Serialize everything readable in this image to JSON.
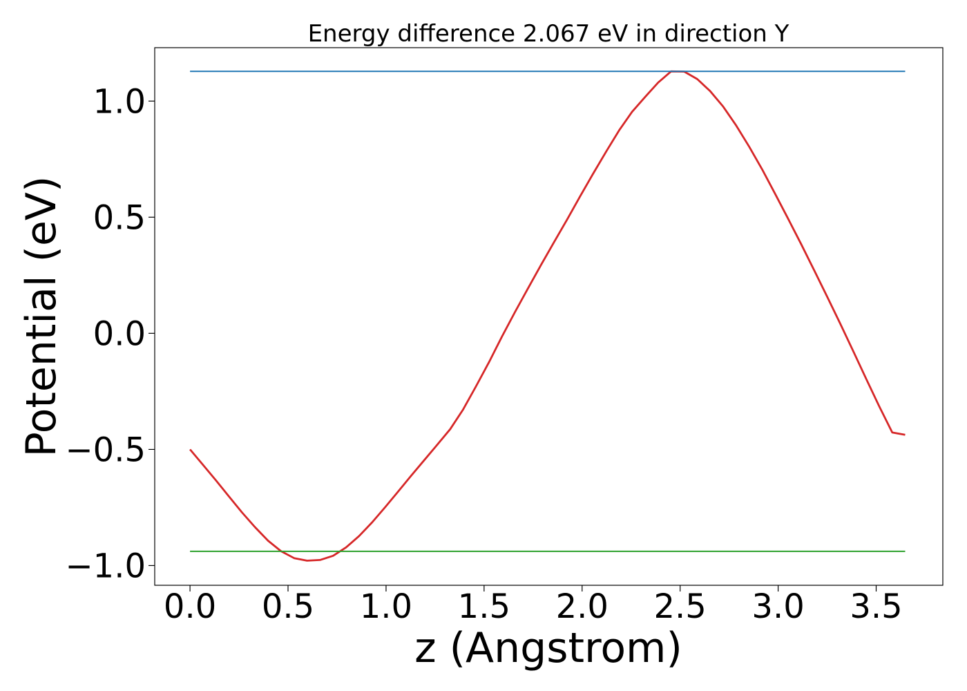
{
  "chart_data": {
    "type": "line",
    "title": "Energy difference 2.067 eV in direction Y",
    "xlabel": "z (Angstrom)",
    "ylabel": "Potential (eV)",
    "xlim": [
      -0.18,
      3.84
    ],
    "ylim": [
      -1.085,
      1.23
    ],
    "xticks": [
      0.0,
      0.5,
      1.0,
      1.5,
      2.0,
      2.5,
      3.0,
      3.5
    ],
    "xtick_labels": [
      "0.0",
      "0.5",
      "1.0",
      "1.5",
      "2.0",
      "2.5",
      "3.0",
      "3.5"
    ],
    "yticks": [
      -1.0,
      -0.5,
      0.0,
      0.5,
      1.0
    ],
    "ytick_labels": [
      "−1.0",
      "−0.5",
      "0.0",
      "0.5",
      "1.0"
    ],
    "grid": false,
    "legend": "none",
    "series": [
      {
        "color": "#d62728",
        "x": [
          0.0,
          0.066,
          0.133,
          0.199,
          0.265,
          0.332,
          0.398,
          0.464,
          0.531,
          0.597,
          0.663,
          0.73,
          0.796,
          0.862,
          0.929,
          0.995,
          1.061,
          1.128,
          1.194,
          1.26,
          1.327,
          1.393,
          1.459,
          1.526,
          1.592,
          1.658,
          1.725,
          1.791,
          1.857,
          1.924,
          1.99,
          2.056,
          2.123,
          2.189,
          2.255,
          2.322,
          2.388,
          2.454,
          2.521,
          2.587,
          2.653,
          2.72,
          2.786,
          2.852,
          2.919,
          2.985,
          3.051,
          3.118,
          3.184,
          3.25,
          3.317,
          3.383,
          3.449,
          3.516,
          3.582,
          3.648
        ],
        "y": [
          -0.5,
          -0.566,
          -0.634,
          -0.703,
          -0.771,
          -0.835,
          -0.893,
          -0.938,
          -0.968,
          -0.979,
          -0.976,
          -0.958,
          -0.922,
          -0.873,
          -0.814,
          -0.749,
          -0.682,
          -0.613,
          -0.547,
          -0.481,
          -0.413,
          -0.328,
          -0.228,
          -0.123,
          -0.013,
          0.092,
          0.195,
          0.295,
          0.393,
          0.491,
          0.59,
          0.687,
          0.783,
          0.874,
          0.954,
          1.018,
          1.08,
          1.128,
          1.127,
          1.095,
          1.043,
          0.976,
          0.895,
          0.804,
          0.705,
          0.6,
          0.493,
          0.383,
          0.271,
          0.158,
          0.041,
          -0.077,
          -0.196,
          -0.315,
          -0.427,
          -0.437
        ]
      },
      {
        "color": "#1f77b4",
        "x": [
          0.0,
          3.648
        ],
        "y": [
          1.128,
          1.128
        ]
      },
      {
        "color": "#2ca02c",
        "x": [
          0.0,
          3.648
        ],
        "y": [
          -0.939,
          -0.939
        ]
      }
    ]
  }
}
